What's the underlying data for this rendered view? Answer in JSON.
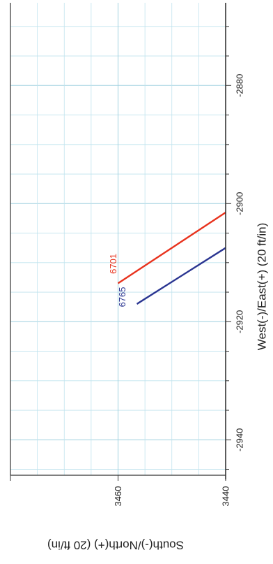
{
  "chart_data": {
    "type": "line",
    "xlabel": "West(-)/East(+) (20 ft/in)",
    "ylabel": "South(-)/North(+) (20 ft/in)",
    "x_ticks": [
      "-2880",
      "-2900",
      "-2920",
      "-2940"
    ],
    "y_ticks": [
      "3460",
      "3440"
    ],
    "xlim": [
      -2946,
      -2866
    ],
    "ylim": [
      3440,
      3480
    ],
    "grid": true,
    "grid_color": "#bfe3ee",
    "series": [
      {
        "name": "6701",
        "color": "#e8321d",
        "points": [
          [
            -2901.5,
            3440
          ],
          [
            -2913.5,
            3460
          ]
        ]
      },
      {
        "name": "6765",
        "color": "#2a3591",
        "points": [
          [
            -2907.5,
            3440
          ],
          [
            -2917,
            3456.5
          ]
        ]
      }
    ]
  }
}
